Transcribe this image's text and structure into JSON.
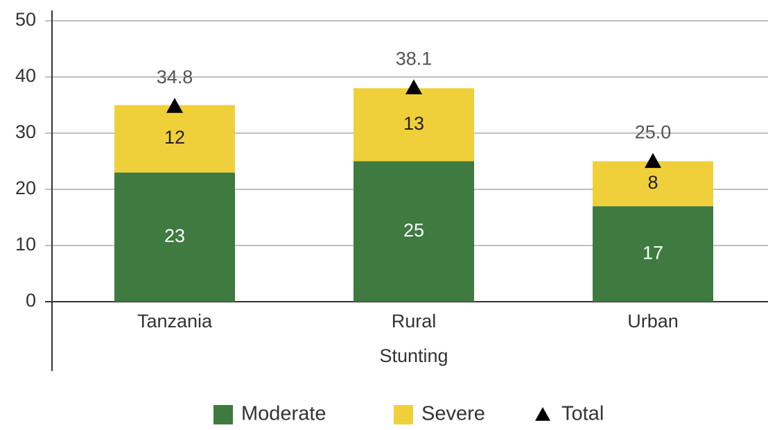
{
  "chart_data": {
    "type": "bar",
    "categories": [
      "Tanzania",
      "Rural",
      "Urban"
    ],
    "x_label": "Stunting",
    "series": [
      {
        "name": "Moderate",
        "color": "#3f7a40",
        "values": [
          23,
          25,
          17
        ]
      },
      {
        "name": "Severe",
        "color": "#f0d03a",
        "values": [
          12,
          13,
          8
        ]
      },
      {
        "name": "Total",
        "color": "#000000",
        "marker": "triangle",
        "values": [
          34.8,
          38.1,
          25
        ],
        "value_labels": [
          "34.8",
          "38.1",
          "25.0"
        ]
      }
    ],
    "ylim": [
      0,
      50
    ],
    "yticks": [
      0,
      10,
      20,
      30,
      40,
      50
    ],
    "grid": true,
    "legend": "bottom"
  }
}
